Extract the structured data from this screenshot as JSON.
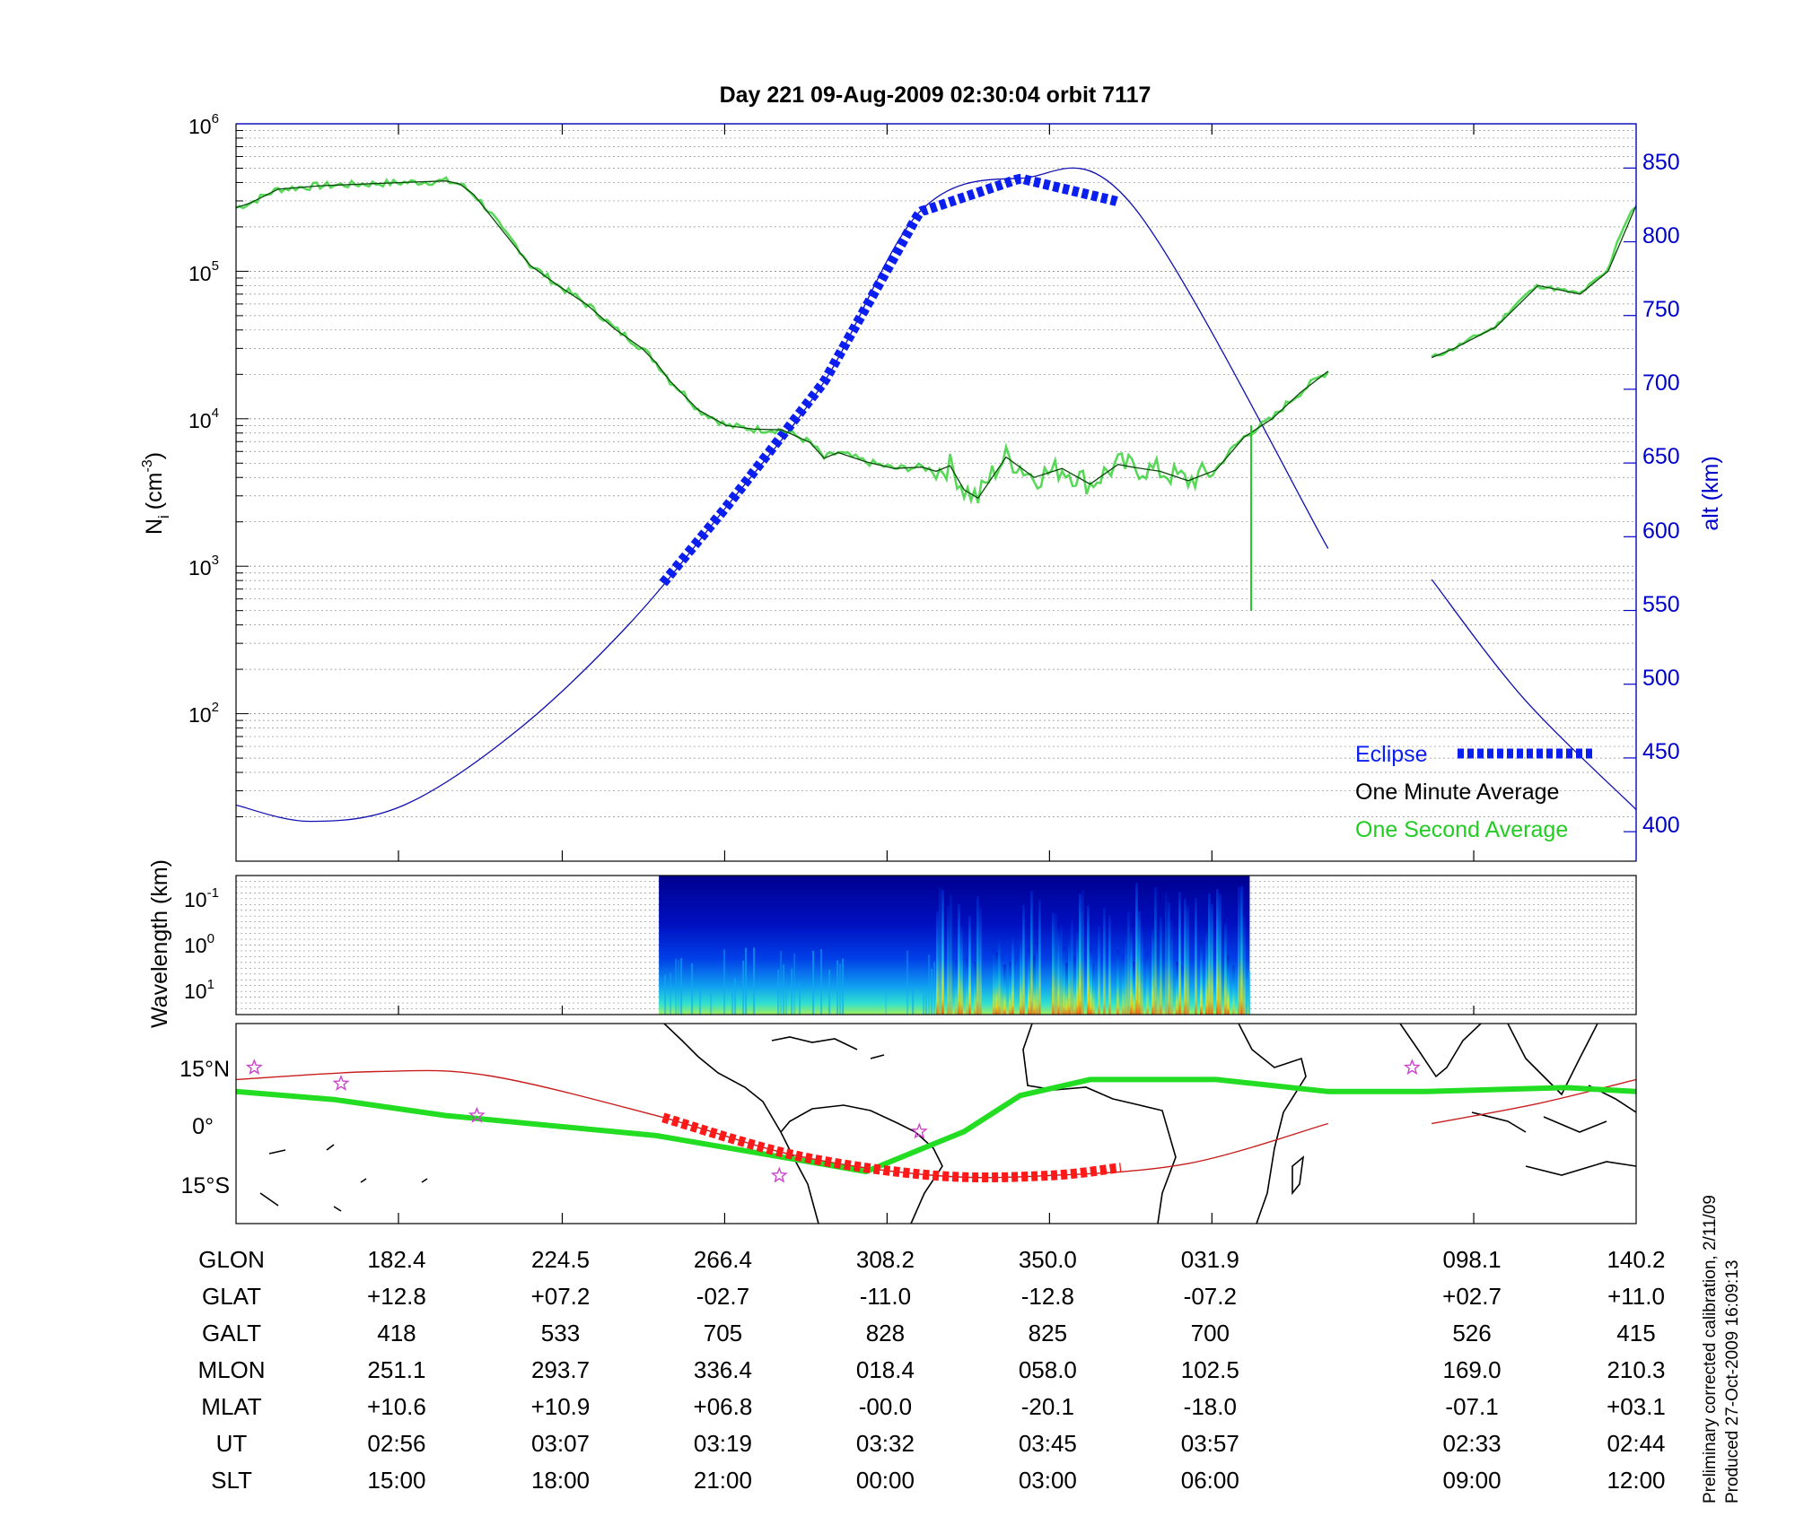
{
  "colors": {
    "model_altitude": "#1010b0",
    "eclipse": "#0b1ef0",
    "one_minute": "#0a4a0a",
    "one_second": "#22cc22",
    "track_red": "#c81e1e",
    "eclipse_track": "#ff1a1a",
    "dip_equator": "#22dd22",
    "coast": "#000000",
    "star": "#cc44cc"
  },
  "chart_data": [
    {
      "type": "line",
      "title": "Day 221  09-Aug-2009 02:30:04   orbit 7117",
      "ylabel_left": "N",
      "ylabel_left_sub": "i",
      "ylabel_left_unit": "(cm",
      "ylabel_left_unit_sup": "-3",
      "ylabel_left_close": ")",
      "ylabel_right": "alt (km)",
      "x_range": [
        0,
        1
      ],
      "y_left_scale": "log",
      "y_left_range": [
        10,
        1000000
      ],
      "y_left_ticks": [
        {
          "base": "10",
          "exp": "2",
          "value": 100
        },
        {
          "base": "10",
          "exp": "3",
          "value": 1000
        },
        {
          "base": "10",
          "exp": "4",
          "value": 10000
        },
        {
          "base": "10",
          "exp": "5",
          "value": 100000
        },
        {
          "base": "10",
          "exp": "6",
          "value": 1000000
        }
      ],
      "y_right_range": [
        380,
        880
      ],
      "y_right_ticks": [
        "400",
        "450",
        "500",
        "550",
        "600",
        "650",
        "700",
        "750",
        "800",
        "850"
      ],
      "grid": "y-minor-dotted",
      "x_ticks": [
        0.116,
        0.233,
        0.349,
        0.465,
        0.581,
        0.697,
        0.884
      ],
      "legend": {
        "position": "bottom-right",
        "entries": [
          {
            "label": "Eclipse",
            "color": "#0b1ef0",
            "style": "thick-dashed"
          },
          {
            "label": "One Minute Average",
            "color": "#000000",
            "style": "none"
          },
          {
            "label": "One Second Average",
            "color": "#22cc22",
            "style": "none"
          }
        ]
      },
      "series": [
        {
          "name": "alt (km)",
          "axis": "right",
          "color": "#1010b0",
          "segments": [
            {
              "x": [
                0.0,
                0.053,
                0.12,
                0.2,
                0.28,
                0.35,
                0.42,
                0.488,
                0.56,
                0.64,
                0.78
              ],
              "y": [
                418,
                407,
                418,
                468,
                540,
                620,
                705,
                820,
                843,
                825,
                592
              ]
            },
            {
              "x": [
                0.854,
                0.92,
                1.0
              ],
              "y": [
                571,
                490,
                415
              ]
            }
          ]
        },
        {
          "name": "Eclipse",
          "axis": "right",
          "color": "#0b1ef0",
          "x_start": 0.305,
          "x_end": 0.632
        },
        {
          "name": "One Minute Average",
          "axis": "left",
          "color": "#0a4a0a",
          "segments": [
            {
              "x": [
                0.0,
                0.01,
                0.03,
                0.06,
                0.09,
                0.12,
                0.15,
                0.16,
                0.17,
                0.19,
                0.21,
                0.23,
                0.25,
                0.27,
                0.29,
                0.3,
                0.31,
                0.33,
                0.35,
                0.37,
                0.39,
                0.41,
                0.42,
                0.43,
                0.45,
                0.47,
                0.49,
                0.5,
                0.51,
                0.52,
                0.53,
                0.55,
                0.57,
                0.59,
                0.61,
                0.63,
                0.64,
                0.66,
                0.68,
                0.7,
                0.72,
                0.74,
                0.76,
                0.78
              ],
              "y": [
                270000,
                290000,
                360000,
                380000,
                390000,
                400000,
                410000,
                390000,
                330000,
                190000,
                110000,
                80000,
                60000,
                41000,
                30000,
                24000,
                18000,
                11500,
                9000,
                8500,
                8400,
                6900,
                5400,
                5900,
                5100,
                4600,
                4700,
                4400,
                4800,
                3300,
                2900,
                5500,
                4000,
                4600,
                3600,
                4900,
                4700,
                4400,
                3800,
                4500,
                7500,
                10000,
                15000,
                21000
              ]
            },
            {
              "x": [
                0.854,
                0.87,
                0.9,
                0.93,
                0.96,
                0.98,
                1.0
              ],
              "y": [
                26000,
                30000,
                42000,
                80000,
                70000,
                100000,
                280000
              ]
            }
          ]
        },
        {
          "name": "One Second Average",
          "axis": "left",
          "color": "#22cc22",
          "spike": {
            "x": 0.725,
            "y_top": 9000,
            "y_bottom": 500
          }
        }
      ]
    },
    {
      "type": "heatmap",
      "ylabel": "Wavelength (km)",
      "y_ticks": [
        {
          "base": "10",
          "exp": "-1"
        },
        {
          "base": "10",
          "exp": "0"
        },
        {
          "base": "10",
          "exp": "1"
        }
      ],
      "data_x_range": [
        0.302,
        0.724
      ],
      "colormap": "jet"
    },
    {
      "type": "map",
      "y_ticks": [
        "15°N",
        "0°",
        "15°S"
      ],
      "lat_range": [
        -25,
        25
      ],
      "tracks": [
        {
          "name": "satellite track",
          "color": "#c81e1e",
          "x": [
            0.0,
            0.1,
            0.18,
            0.3,
            0.4,
            0.5,
            0.58,
            0.68,
            0.78
          ],
          "lat": [
            11,
            13,
            12,
            2,
            -8,
            -13,
            -13,
            -10,
            0
          ]
        },
        {
          "name": "satellite track 2",
          "color": "#c81e1e",
          "x": [
            0.854,
            0.93,
            1.0
          ],
          "lat": [
            0,
            5,
            11
          ]
        },
        {
          "name": "eclipse track",
          "color": "#ff1a1a",
          "x": [
            0.305,
            0.4,
            0.5,
            0.58,
            0.632
          ],
          "lat": [
            1.5,
            -8,
            -13,
            -13,
            -11
          ]
        },
        {
          "name": "dip equator",
          "color": "#22dd22",
          "x": [
            0.0,
            0.07,
            0.15,
            0.3,
            0.4,
            0.45,
            0.52,
            0.56,
            0.61,
            0.7,
            0.78,
            0.85,
            0.95,
            1.0
          ],
          "lat": [
            8,
            6,
            2,
            -3,
            -9,
            -12,
            -2,
            7,
            11,
            11,
            8,
            8,
            9,
            8
          ]
        }
      ],
      "stars": [
        {
          "x": 0.013,
          "lat": 14
        },
        {
          "x": 0.075,
          "lat": 10
        },
        {
          "x": 0.172,
          "lat": 2
        },
        {
          "x": 0.388,
          "lat": -13
        },
        {
          "x": 0.488,
          "lat": -2
        },
        {
          "x": 0.84,
          "lat": 14
        }
      ]
    }
  ],
  "table": {
    "rows": [
      {
        "label": "GLON",
        "values": [
          "182.4",
          "224.5",
          "266.4",
          "308.2",
          "350.0",
          "031.9",
          "098.1",
          "140.2"
        ]
      },
      {
        "label": "GLAT",
        "values": [
          "+12.8",
          "+07.2",
          "-02.7",
          "-11.0",
          "-12.8",
          "-07.2",
          "+02.7",
          "+11.0"
        ]
      },
      {
        "label": "GALT",
        "values": [
          "418",
          "533",
          "705",
          "828",
          "825",
          "700",
          "526",
          "415"
        ]
      },
      {
        "label": "MLON",
        "values": [
          "251.1",
          "293.7",
          "336.4",
          "018.4",
          "058.0",
          "102.5",
          "169.0",
          "210.3"
        ]
      },
      {
        "label": "MLAT",
        "values": [
          "+10.6",
          "+10.9",
          "+06.8",
          "-00.0",
          "-20.1",
          "-18.0",
          "-07.1",
          "+03.1"
        ]
      },
      {
        "label": "UT",
        "values": [
          "02:56",
          "03:07",
          "03:19",
          "03:32",
          "03:45",
          "03:57",
          "02:33",
          "02:44"
        ]
      },
      {
        "label": "SLT",
        "values": [
          "15:00",
          "18:00",
          "21:00",
          "00:00",
          "03:00",
          "06:00",
          "09:00",
          "12:00"
        ]
      }
    ]
  },
  "footnote": {
    "line1": "Preliminary corrected calibration, 2/11/09",
    "line2": "Produced 27-Oct-2009 16:09:13"
  }
}
